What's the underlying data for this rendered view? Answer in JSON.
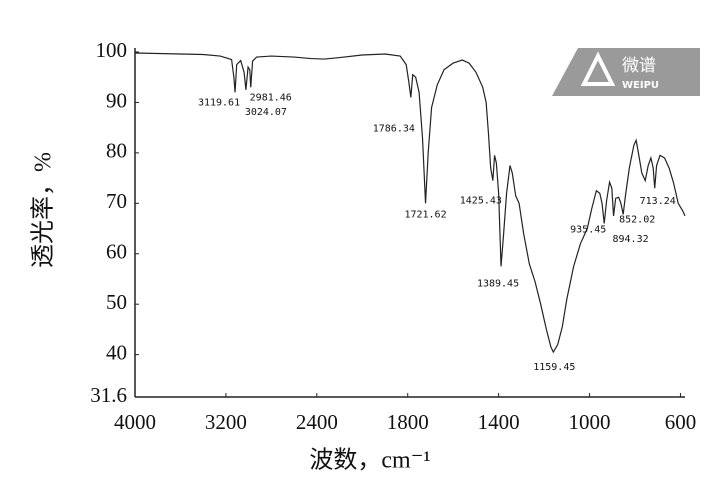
{
  "chart_data": {
    "type": "line",
    "ylabel": "透光率，%",
    "xlabel": "波数，cm⁻¹",
    "color": "#222222",
    "xlim": [
      4000,
      580
    ],
    "xticks": [
      4000,
      3200,
      2400,
      1800,
      1400,
      1000,
      600
    ],
    "ylim": [
      31.6,
      100
    ],
    "yticks": [
      100,
      90,
      80,
      70,
      60,
      50,
      40,
      31.6
    ],
    "x": [
      4000,
      3800,
      3600,
      3400,
      3250,
      3150,
      3130,
      3119.61,
      3105,
      3070,
      3040,
      3024.07,
      3005,
      2990,
      2981.46,
      2965,
      2930,
      2800,
      2600,
      2450,
      2350,
      2250,
      2100,
      1950,
      1850,
      1810,
      1795,
      1786.34,
      1778,
      1765,
      1750,
      1735,
      1721.62,
      1710,
      1695,
      1670,
      1640,
      1600,
      1560,
      1530,
      1500,
      1470,
      1455,
      1445,
      1435,
      1425.43,
      1418,
      1410,
      1400,
      1389.45,
      1378,
      1365,
      1350,
      1340,
      1325,
      1310,
      1290,
      1265,
      1240,
      1215,
      1190,
      1170,
      1159.45,
      1140,
      1120,
      1100,
      1070,
      1040,
      1010,
      990,
      970,
      955,
      945,
      935.45,
      925,
      912,
      902,
      894.32,
      885,
      872,
      862,
      852.02,
      842,
      825,
      805,
      795,
      785,
      770,
      755,
      742,
      730,
      720,
      713.24,
      705,
      690,
      670,
      650,
      630,
      610,
      590,
      580
    ],
    "values": [
      99.8,
      99.7,
      99.6,
      99.5,
      99.2,
      98.5,
      95,
      92,
      97.5,
      98.3,
      96,
      92.5,
      97,
      96.5,
      93,
      98.2,
      99,
      99.2,
      99,
      98.7,
      98.6,
      98.9,
      99.4,
      99.6,
      99.2,
      97.5,
      94,
      91,
      95.5,
      95,
      92,
      83,
      70,
      80,
      89,
      93.5,
      96.5,
      97.8,
      98.4,
      97.8,
      96,
      93,
      90,
      84,
      77,
      74.5,
      79.5,
      78,
      72,
      57.5,
      64,
      72,
      77.5,
      76,
      71.5,
      70,
      64,
      58,
      54.5,
      50,
      45,
      41.5,
      40.5,
      42,
      45.5,
      51,
      57.5,
      62,
      65,
      69,
      72.5,
      72,
      70,
      66,
      70.5,
      74.2,
      73,
      67.5,
      71,
      71.2,
      70,
      67.8,
      71.5,
      77,
      81.5,
      82.5,
      80,
      76,
      74.5,
      77.5,
      79,
      77,
      73,
      77.5,
      79.5,
      79,
      77,
      74,
      70,
      68.5,
      67.5
    ],
    "annotations": [
      {
        "x": 3119.61,
        "y": 92
      },
      {
        "x": 2981.46,
        "y": 93
      },
      {
        "x": 3024.07,
        "y": 92.5
      },
      {
        "x": 1786.34,
        "y": 91
      },
      {
        "x": 1721.62,
        "y": 70
      },
      {
        "x": 1425.43,
        "y": 74.5
      },
      {
        "x": 1389.45,
        "y": 57.5
      },
      {
        "x": 1159.45,
        "y": 40.5
      },
      {
        "x": 935.45,
        "y": 66
      },
      {
        "x": 852.02,
        "y": 67.8
      },
      {
        "x": 894.32,
        "y": 67.5
      },
      {
        "x": 713.24,
        "y": 73
      }
    ]
  },
  "watermark": {
    "text": "微谱",
    "subtext": "WEIPU"
  }
}
